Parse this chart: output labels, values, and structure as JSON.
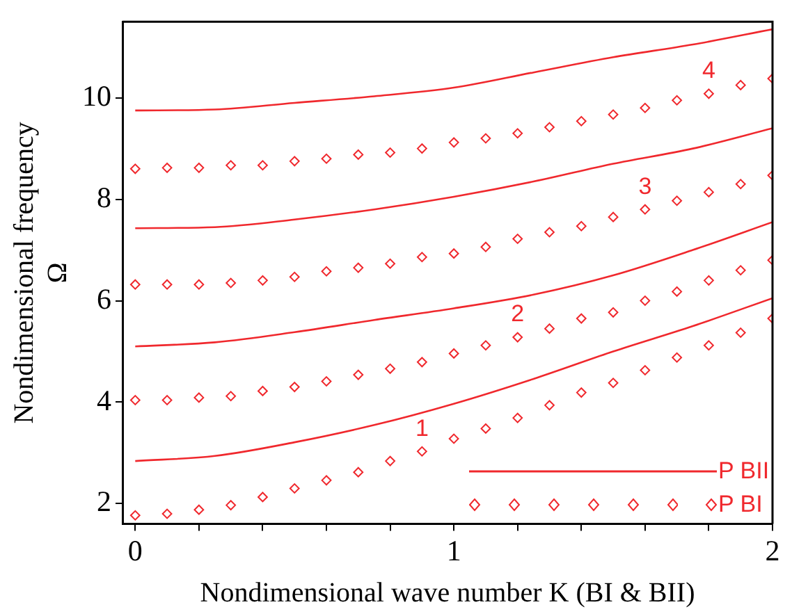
{
  "chart_data": {
    "type": "line",
    "xlabel": "Nondimensional wave number K (BI & BII)",
    "ylabel": "Nondimensional frequency\nΩ",
    "xlim": [
      -0.04,
      2.0
    ],
    "ylim": [
      1.6,
      11.5
    ],
    "xticks": [
      0,
      {
        "value": 0.2,
        "label": null
      },
      {
        "value": 0.4,
        "label": null
      },
      {
        "value": 0.6,
        "label": null
      },
      {
        "value": 0.8,
        "label": null
      },
      1,
      {
        "value": 1.2,
        "label": null
      },
      {
        "value": 1.4,
        "label": null
      },
      {
        "value": 1.6,
        "label": null
      },
      {
        "value": 1.8,
        "label": null
      },
      2
    ],
    "yticks": [
      2,
      4,
      6,
      8,
      10
    ],
    "grid": false,
    "legend": "bottom right",
    "series": [
      {
        "name": "P BII",
        "type": "line",
        "color": "#f0282d",
        "marker": "none",
        "x": [
          0,
          0.25,
          0.5,
          0.75,
          1.0,
          1.25,
          1.5,
          1.75,
          2.0
        ],
        "values": [
          2.84,
          2.94,
          3.21,
          3.55,
          3.97,
          4.46,
          5.0,
          5.5,
          6.05
        ]
      },
      {
        "type": "line",
        "color": "#f0282d",
        "marker": "none",
        "x": [
          0,
          0.25,
          0.5,
          0.75,
          1.0,
          1.25,
          1.5,
          1.75,
          2.0
        ],
        "values": [
          5.1,
          5.18,
          5.38,
          5.62,
          5.85,
          6.12,
          6.5,
          7.0,
          7.55
        ]
      },
      {
        "type": "line",
        "color": "#f0282d",
        "marker": "none",
        "x": [
          0,
          0.25,
          0.5,
          0.75,
          1.0,
          1.25,
          1.5,
          1.75,
          2.0
        ],
        "values": [
          7.43,
          7.45,
          7.6,
          7.8,
          8.05,
          8.35,
          8.7,
          9.0,
          9.4
        ]
      },
      {
        "type": "line",
        "color": "#f0282d",
        "marker": "none",
        "x": [
          0,
          0.25,
          0.5,
          0.75,
          1.0,
          1.25,
          1.5,
          1.75,
          2.0
        ],
        "values": [
          9.75,
          9.77,
          9.9,
          10.03,
          10.2,
          10.5,
          10.8,
          11.05,
          11.35
        ]
      },
      {
        "name": "P BI",
        "type": "scatter",
        "color": "#f0282d",
        "marker": "diamond",
        "x": [
          0,
          0.1,
          0.2,
          0.3,
          0.4,
          0.5,
          0.6,
          0.7,
          0.8,
          0.9,
          1.0,
          1.1,
          1.2,
          1.3,
          1.4,
          1.5,
          1.6,
          1.7,
          1.8,
          1.9,
          2.0
        ],
        "values": [
          1.77,
          1.8,
          1.88,
          1.97,
          2.13,
          2.3,
          2.46,
          2.62,
          2.84,
          3.03,
          3.28,
          3.48,
          3.69,
          3.94,
          4.19,
          4.38,
          4.63,
          4.88,
          5.12,
          5.37,
          5.65
        ]
      },
      {
        "type": "scatter",
        "color": "#f0282d",
        "marker": "diamond",
        "x": [
          0,
          0.1,
          0.2,
          0.3,
          0.4,
          0.5,
          0.6,
          0.7,
          0.8,
          0.9,
          1.0,
          1.1,
          1.2,
          1.3,
          1.4,
          1.5,
          1.6,
          1.7,
          1.8,
          1.9,
          2.0
        ],
        "values": [
          4.04,
          4.04,
          4.09,
          4.12,
          4.22,
          4.3,
          4.41,
          4.54,
          4.66,
          4.79,
          4.96,
          5.12,
          5.28,
          5.45,
          5.65,
          5.77,
          6.0,
          6.18,
          6.4,
          6.6,
          6.8
        ]
      },
      {
        "type": "scatter",
        "color": "#f0282d",
        "marker": "diamond",
        "x": [
          0,
          0.1,
          0.2,
          0.3,
          0.4,
          0.5,
          0.6,
          0.7,
          0.8,
          0.9,
          1.0,
          1.1,
          1.2,
          1.3,
          1.4,
          1.5,
          1.6,
          1.7,
          1.8,
          1.9,
          2.0
        ],
        "values": [
          6.32,
          6.32,
          6.32,
          6.35,
          6.4,
          6.47,
          6.58,
          6.65,
          6.73,
          6.86,
          6.93,
          7.06,
          7.22,
          7.35,
          7.47,
          7.65,
          7.8,
          7.97,
          8.14,
          8.3,
          8.47
        ]
      },
      {
        "type": "scatter",
        "color": "#f0282d",
        "marker": "diamond",
        "x": [
          0,
          0.1,
          0.2,
          0.3,
          0.4,
          0.5,
          0.6,
          0.7,
          0.8,
          0.9,
          1.0,
          1.1,
          1.2,
          1.3,
          1.4,
          1.5,
          1.6,
          1.7,
          1.8,
          1.9,
          2.0
        ],
        "values": [
          8.6,
          8.62,
          8.62,
          8.67,
          8.67,
          8.75,
          8.8,
          8.88,
          8.92,
          9.0,
          9.12,
          9.2,
          9.3,
          9.42,
          9.54,
          9.67,
          9.8,
          9.95,
          10.08,
          10.25,
          10.38
        ]
      }
    ],
    "annotations": [
      {
        "text": "1",
        "x": 0.9,
        "y": 3.03
      },
      {
        "text": "2",
        "x": 1.2,
        "y": 5.28
      },
      {
        "text": "3",
        "x": 1.6,
        "y": 7.8
      },
      {
        "text": "4",
        "x": 1.8,
        "y": 10.08
      }
    ]
  }
}
